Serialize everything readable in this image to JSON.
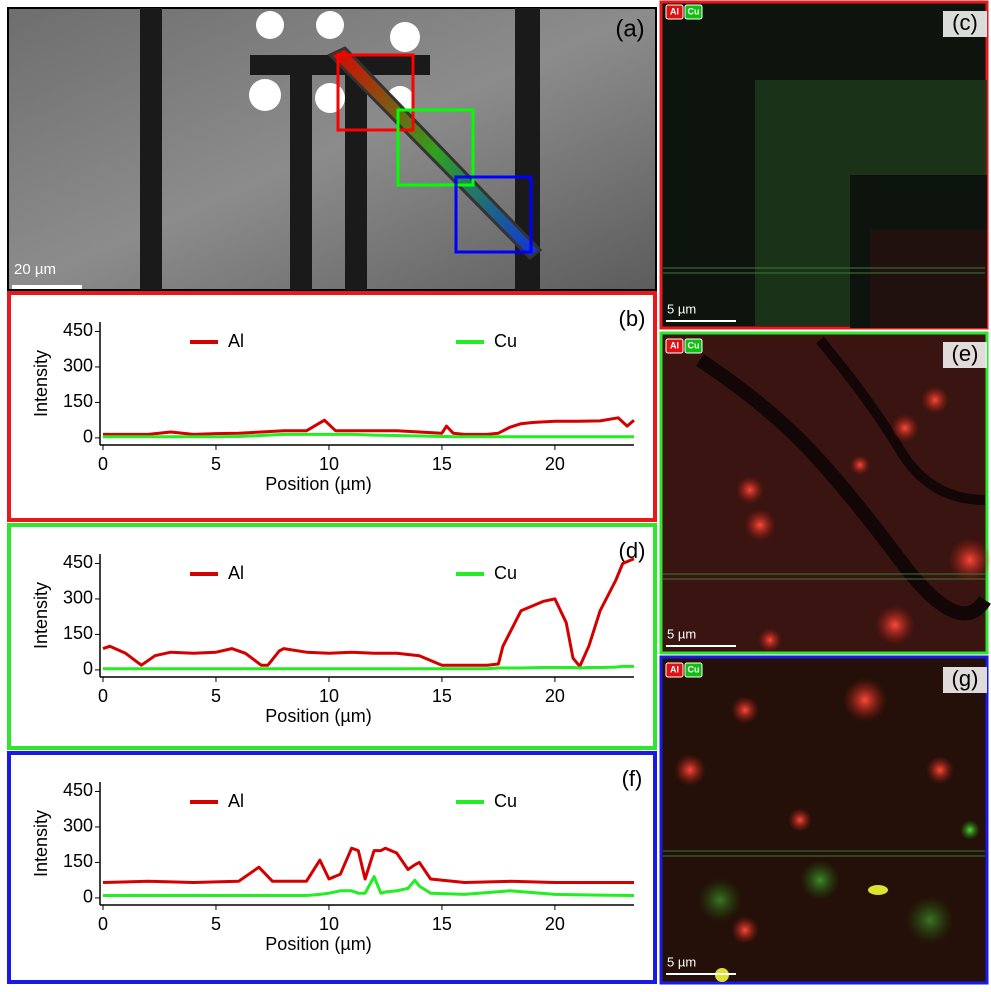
{
  "images": [
    {
      "label": "(a)",
      "scale_bar": "20 µm"
    },
    {
      "label": "(c)",
      "scale_bar": "5 µm",
      "badges": [
        "Al",
        "Cu"
      ]
    },
    {
      "label": "(e)",
      "scale_bar": "5 µm",
      "badges": [
        "Al",
        "Cu"
      ]
    },
    {
      "label": "(g)",
      "scale_bar": "5 µm",
      "badges": [
        "Al",
        "Cu"
      ]
    }
  ],
  "chart_data": [
    {
      "type": "line",
      "label": "(b)",
      "frame_color": "#e8191c",
      "xlabel": "Position (µm)",
      "ylabel": "Intensity",
      "xlim": [
        0,
        23.5
      ],
      "ylim": [
        -30,
        490
      ],
      "xticks": [
        0,
        5,
        10,
        15,
        20
      ],
      "yticks": [
        0,
        150,
        300,
        450
      ],
      "x": [
        0,
        1,
        2,
        3,
        4,
        5,
        6,
        7,
        8,
        9,
        9.8,
        10.3,
        11,
        12,
        13,
        14,
        15,
        15.2,
        15.5,
        16,
        17,
        17.5,
        18,
        18.5,
        19,
        20,
        21,
        22,
        22.8,
        23.2,
        23.5
      ],
      "series": [
        {
          "name": "Al",
          "color": "#d40000",
          "values": [
            15,
            15,
            15,
            25,
            15,
            18,
            20,
            25,
            30,
            30,
            75,
            30,
            30,
            30,
            30,
            25,
            20,
            50,
            20,
            15,
            15,
            20,
            45,
            60,
            65,
            70,
            70,
            72,
            85,
            50,
            75
          ]
        },
        {
          "name": "Cu",
          "color": "#22ee22",
          "values": [
            5,
            5,
            5,
            5,
            5,
            5,
            6,
            10,
            15,
            15,
            15,
            15,
            15,
            12,
            10,
            8,
            6,
            6,
            5,
            5,
            5,
            5,
            5,
            5,
            5,
            5,
            5,
            5,
            5,
            5,
            5
          ]
        }
      ]
    },
    {
      "type": "line",
      "label": "(d)",
      "frame_color": "#2ee62e",
      "xlabel": "Position (µm)",
      "ylabel": "Intensity",
      "xlim": [
        0,
        23.5
      ],
      "ylim": [
        -30,
        490
      ],
      "xticks": [
        0,
        5,
        10,
        15,
        20
      ],
      "yticks": [
        0,
        150,
        300,
        450
      ],
      "x": [
        0,
        0.3,
        1,
        1.7,
        2.3,
        3,
        4,
        5,
        5.7,
        6.3,
        7,
        7.3,
        7.8,
        8,
        9,
        10,
        11,
        12,
        13,
        13.5,
        14,
        15,
        16,
        17,
        17.5,
        17.7,
        18.5,
        19.5,
        20,
        20.5,
        20.8,
        21.1,
        21.5,
        22,
        22.7,
        23,
        23.5
      ],
      "series": [
        {
          "name": "Al",
          "color": "#d40000",
          "values": [
            90,
            100,
            70,
            20,
            60,
            75,
            70,
            75,
            90,
            70,
            20,
            20,
            80,
            90,
            75,
            70,
            75,
            70,
            70,
            65,
            60,
            20,
            20,
            20,
            25,
            100,
            250,
            290,
            300,
            200,
            50,
            15,
            100,
            250,
            380,
            450,
            470
          ]
        },
        {
          "name": "Cu",
          "color": "#22ee22",
          "values": [
            5,
            5,
            5,
            5,
            5,
            5,
            5,
            5,
            5,
            5,
            5,
            5,
            5,
            5,
            5,
            5,
            5,
            5,
            5,
            5,
            5,
            5,
            5,
            5,
            8,
            8,
            8,
            10,
            10,
            10,
            10,
            8,
            10,
            10,
            12,
            15,
            15
          ]
        }
      ]
    },
    {
      "type": "line",
      "label": "(f)",
      "frame_color": "#1a1ae6",
      "xlabel": "Position (µm)",
      "ylabel": "Intensity",
      "xlim": [
        0,
        23.5
      ],
      "ylim": [
        -30,
        490
      ],
      "xticks": [
        0,
        5,
        10,
        15,
        20
      ],
      "yticks": [
        0,
        150,
        300,
        450
      ],
      "x": [
        0,
        2,
        4,
        6,
        6.9,
        7.5,
        9,
        9.6,
        10,
        10.5,
        11,
        11.3,
        11.6,
        12,
        12.3,
        12.5,
        13,
        13.5,
        13.8,
        14,
        14.5,
        16,
        18,
        20,
        22,
        23.5
      ],
      "series": [
        {
          "name": "Al",
          "color": "#d40000",
          "values": [
            65,
            70,
            65,
            70,
            130,
            70,
            70,
            160,
            80,
            100,
            210,
            200,
            80,
            200,
            200,
            210,
            190,
            120,
            140,
            150,
            80,
            65,
            70,
            65,
            65,
            65
          ]
        },
        {
          "name": "Cu",
          "color": "#22ee22",
          "values": [
            10,
            10,
            10,
            10,
            10,
            10,
            10,
            15,
            20,
            30,
            30,
            20,
            20,
            90,
            20,
            25,
            30,
            40,
            75,
            50,
            20,
            15,
            30,
            15,
            12,
            10
          ]
        }
      ]
    }
  ]
}
